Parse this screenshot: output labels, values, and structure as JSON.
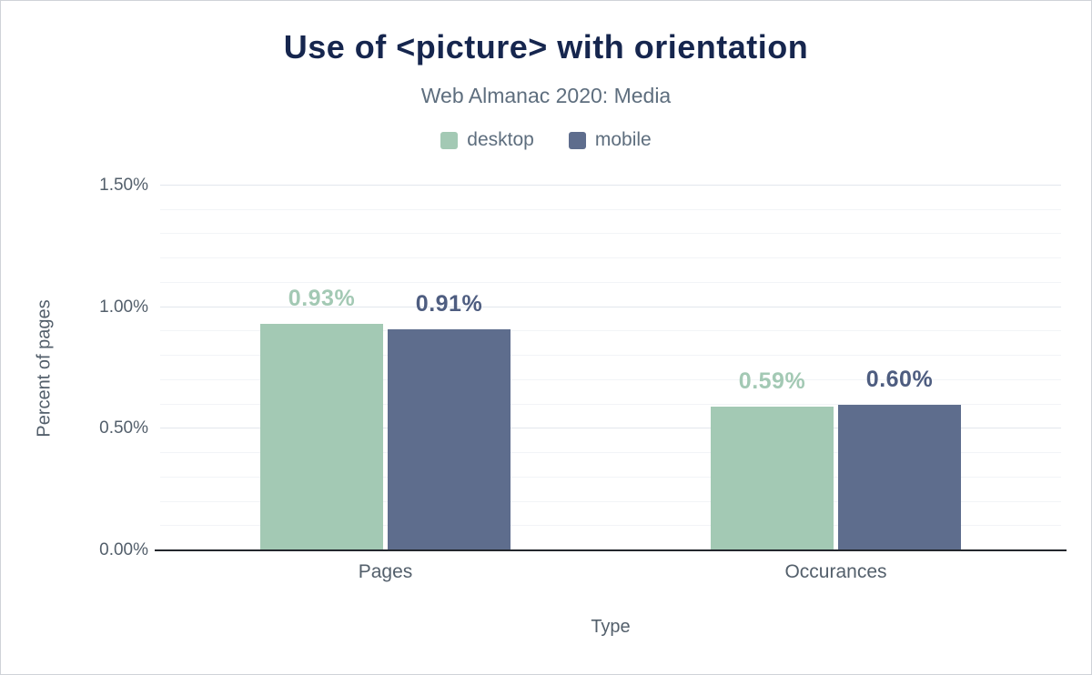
{
  "chart_data": {
    "type": "bar",
    "title": "Use of <picture> with orientation",
    "subtitle": "Web Almanac 2020: Media",
    "xlabel": "Type",
    "ylabel": "Percent of pages",
    "categories": [
      "Pages",
      "Occurances"
    ],
    "series": [
      {
        "name": "desktop",
        "color": "#a3c9b4",
        "label_color": "#a3c9b4",
        "values": [
          0.93,
          0.59
        ],
        "value_labels": [
          "0.93%",
          "0.59%"
        ]
      },
      {
        "name": "mobile",
        "color": "#5e6d8d",
        "label_color": "#4e5d80",
        "values": [
          0.91,
          0.6
        ],
        "value_labels": [
          "0.91%",
          "0.60%"
        ]
      }
    ],
    "ylim": [
      0,
      1.5
    ],
    "yticks": [
      {
        "value": 0,
        "label": "0.00%"
      },
      {
        "value": 0.5,
        "label": "0.50%"
      },
      {
        "value": 1.0,
        "label": "1.00%"
      },
      {
        "value": 1.5,
        "label": "1.50%"
      }
    ],
    "grid": "horizontal-minor-0.1-major-0.5",
    "legend_position": "top"
  }
}
